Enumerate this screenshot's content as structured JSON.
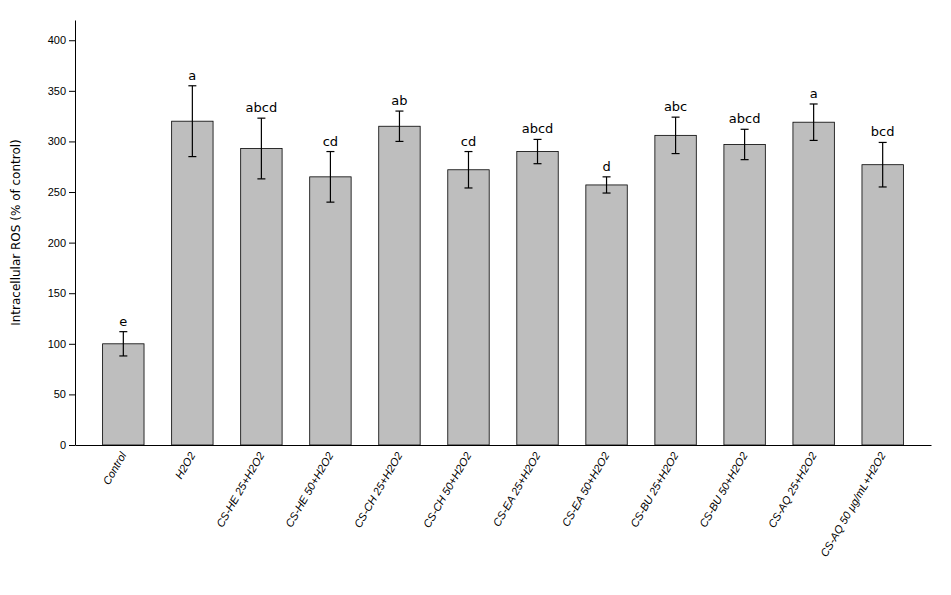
{
  "chart_data": {
    "type": "bar",
    "ylabel": "Intracellular ROS (% of control)",
    "categories": [
      "Control",
      "H2O2",
      "CS-HE 25+H2O2",
      "CS-HE 50+H2O2",
      "CS-CH 25+H2O2",
      "CS-CH 50+H2O2",
      "CS-EA 25+H2O2",
      "CS-EA 50+H2O2",
      "CS-BU 25+H2O2",
      "CS-BU 50+H2O2",
      "CS-AQ 25+H2O2",
      "CS-AQ 50 μg/mL+H2O2"
    ],
    "values": [
      100,
      320,
      293,
      265,
      315,
      272,
      290,
      257,
      306,
      297,
      319,
      277
    ],
    "errors": [
      12,
      35,
      30,
      25,
      15,
      18,
      12,
      8,
      18,
      15,
      18,
      22
    ],
    "annotations": [
      "e",
      "a",
      "abcd",
      "cd",
      "ab",
      "cd",
      "abcd",
      "d",
      "abc",
      "abcd",
      "a",
      "bcd"
    ],
    "color": "#BEBEBE",
    "ylim": [
      0,
      420
    ],
    "yticks": [
      0,
      50,
      100,
      150,
      200,
      250,
      300,
      350,
      400
    ]
  }
}
